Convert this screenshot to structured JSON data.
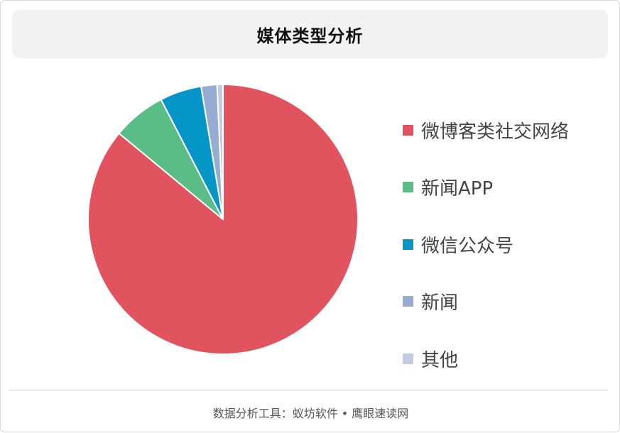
{
  "title": "媒体类型分析",
  "footer": "数据分析工具：蚁坊软件 • 鹰眼速读网",
  "chart_data": {
    "type": "pie",
    "title": "媒体类型分析",
    "categories": [
      "微博客类社交网络",
      "新闻APP",
      "微信公众号",
      "新闻",
      "其他"
    ],
    "values": [
      86.0,
      6.4,
      5.0,
      1.9,
      0.7
    ],
    "unit": "%",
    "colors": [
      "#e0535f",
      "#59bd85",
      "#0596c8",
      "#96acd2",
      "#c0cde2"
    ],
    "legend_position": "right"
  }
}
